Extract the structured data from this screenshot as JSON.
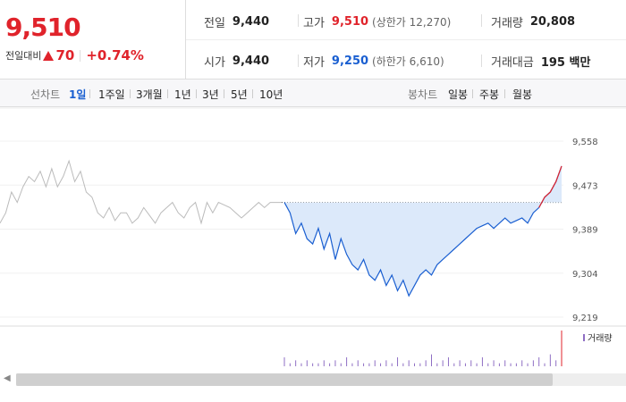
{
  "quote": {
    "price": "9,510",
    "change_label": "전일대비",
    "change": "70",
    "change_pct": "+0.74%"
  },
  "stats": {
    "prev_label": "전일",
    "prev": "9,440",
    "high_label": "고가",
    "high": "9,510",
    "upper_limit": "(상한가 12,270)",
    "volume_label": "거래량",
    "volume": "20,808",
    "open_label": "시가",
    "open": "9,440",
    "low_label": "저가",
    "low": "9,250",
    "lower_limit": "(하한가 6,610)",
    "amount_label": "거래대금",
    "amount": "195 백만"
  },
  "tabs": {
    "line_label": "선차트",
    "line_tabs": [
      "1일",
      "1주일",
      "3개월",
      "1년",
      "3년",
      "5년",
      "10년"
    ],
    "candle_label": "봉차트",
    "candle_tabs": [
      "일봉",
      "주봉",
      "월봉"
    ]
  },
  "chart_data": {
    "type": "line",
    "y_ticks": [
      "9,558",
      "9,473",
      "9,389",
      "9,304",
      "9,219"
    ],
    "ylim": [
      9219,
      9558
    ],
    "reference_price": 9440,
    "volume_legend": "거래량",
    "colors": {
      "up": "#e0232b",
      "down": "#1a5fd1",
      "fill": "#dce9fa",
      "prev": "#bbbbbb"
    },
    "prev_series": [
      9400,
      9420,
      9460,
      9440,
      9470,
      9490,
      9480,
      9500,
      9470,
      9505,
      9470,
      9490,
      9520,
      9480,
      9500,
      9460,
      9450,
      9420,
      9410,
      9430,
      9405,
      9420,
      9420,
      9400,
      9410,
      9430,
      9415,
      9400,
      9420,
      9430,
      9440,
      9420,
      9410,
      9430,
      9440,
      9400,
      9440,
      9420,
      9440,
      9435,
      9430,
      9420,
      9410,
      9420,
      9430,
      9440,
      9430,
      9440,
      9440,
      9440
    ],
    "series": [
      9440,
      9420,
      9380,
      9400,
      9370,
      9360,
      9390,
      9350,
      9380,
      9330,
      9370,
      9340,
      9320,
      9310,
      9330,
      9300,
      9290,
      9310,
      9280,
      9300,
      9270,
      9290,
      9260,
      9280,
      9300,
      9310,
      9300,
      9320,
      9330,
      9340,
      9350,
      9360,
      9370,
      9380,
      9390,
      9395,
      9400,
      9390,
      9400,
      9410,
      9400,
      9405,
      9410,
      9400,
      9420,
      9430,
      9450,
      9460,
      9480,
      9510
    ],
    "volume": [
      3,
      1,
      2,
      1,
      2,
      1,
      1,
      2,
      1,
      2,
      1,
      3,
      1,
      2,
      1,
      1,
      2,
      1,
      2,
      1,
      3,
      1,
      2,
      1,
      1,
      2,
      4,
      1,
      2,
      3,
      1,
      2,
      1,
      2,
      1,
      3,
      1,
      2,
      1,
      2,
      1,
      1,
      2,
      1,
      2,
      3,
      1,
      4,
      2,
      12
    ]
  }
}
